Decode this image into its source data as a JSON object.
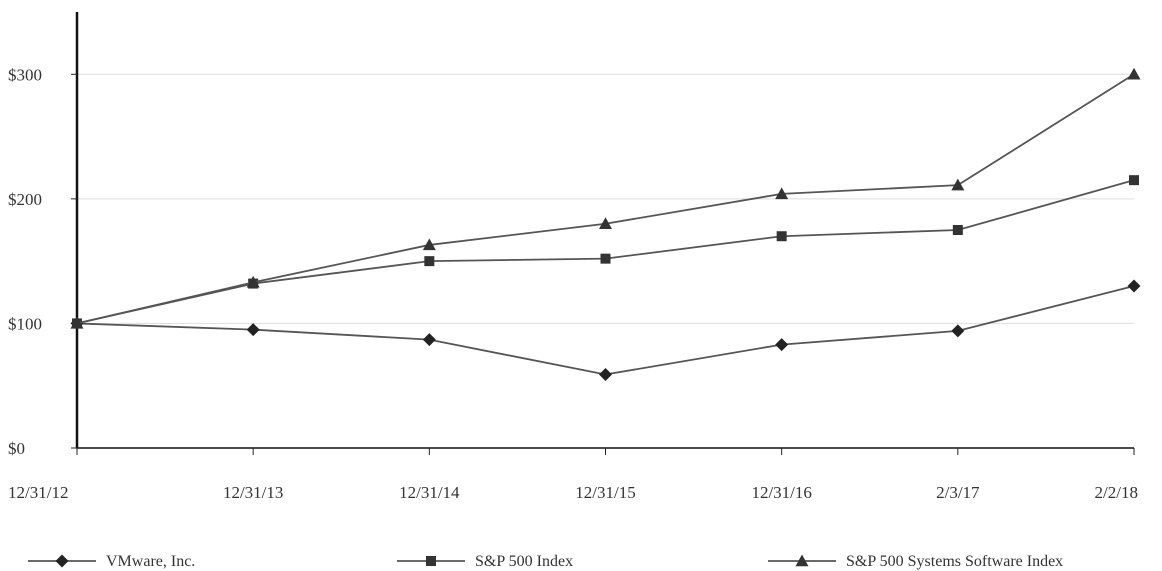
{
  "chart_data": {
    "type": "line",
    "title": "",
    "xlabel": "",
    "ylabel": "",
    "categories": [
      "12/31/12",
      "12/31/13",
      "12/31/14",
      "12/31/15",
      "12/31/16",
      "2/3/17",
      "2/2/18"
    ],
    "y_ticks": [
      0,
      100,
      200,
      300
    ],
    "y_tick_labels": [
      "$0",
      "$100",
      "$200",
      "$300"
    ],
    "ylim": [
      0,
      350
    ],
    "grid": true,
    "legend_position": "bottom",
    "series": [
      {
        "name": "VMware, Inc.",
        "marker": "diamond",
        "color": "#555555",
        "values": [
          100,
          95,
          87,
          59,
          83,
          94,
          130
        ]
      },
      {
        "name": "S&P 500 Index",
        "marker": "square",
        "color": "#555555",
        "values": [
          100,
          132,
          150,
          152,
          170,
          175,
          215
        ]
      },
      {
        "name": "S&P 500 Systems Software Index",
        "marker": "triangle",
        "color": "#555555",
        "values": [
          100,
          133,
          163,
          180,
          204,
          211,
          300
        ]
      }
    ]
  }
}
